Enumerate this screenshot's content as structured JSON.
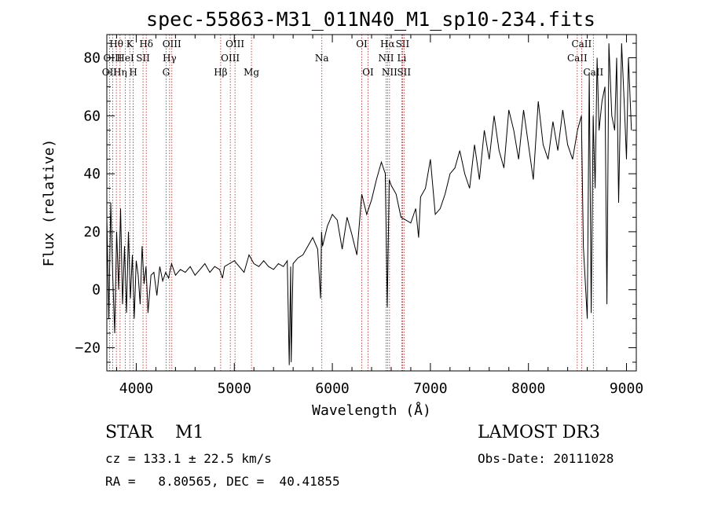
{
  "chart_data": {
    "type": "line",
    "title": "spec-55863-M31_011N40_M1_sp10-234.fits",
    "xlabel": "Wavelength (Å)",
    "ylabel": "Flux (relative)",
    "xlim": [
      3700,
      9100
    ],
    "ylim": [
      -28,
      88
    ],
    "xticks": [
      4000,
      5000,
      6000,
      7000,
      8000,
      9000
    ],
    "yticks": [
      -20,
      0,
      20,
      40,
      60,
      80
    ],
    "series": [
      {
        "name": "flux",
        "x": [
          3700,
          3720,
          3740,
          3760,
          3780,
          3800,
          3820,
          3840,
          3860,
          3880,
          3900,
          3920,
          3940,
          3960,
          3980,
          4000,
          4020,
          4040,
          4060,
          4080,
          4100,
          4120,
          4150,
          4180,
          4210,
          4240,
          4270,
          4300,
          4330,
          4360,
          4400,
          4450,
          4500,
          4550,
          4600,
          4650,
          4700,
          4750,
          4800,
          4850,
          4880,
          4900,
          4950,
          5000,
          5050,
          5100,
          5150,
          5200,
          5250,
          5300,
          5350,
          5400,
          5450,
          5500,
          5540,
          5560,
          5575,
          5580,
          5600,
          5650,
          5700,
          5750,
          5800,
          5850,
          5880,
          5890,
          5900,
          5950,
          6000,
          6050,
          6100,
          6150,
          6200,
          6250,
          6300,
          6350,
          6400,
          6450,
          6500,
          6540,
          6560,
          6580,
          6600,
          6650,
          6700,
          6750,
          6800,
          6850,
          6880,
          6900,
          6950,
          7000,
          7050,
          7100,
          7150,
          7200,
          7250,
          7300,
          7350,
          7400,
          7450,
          7500,
          7550,
          7600,
          7650,
          7700,
          7750,
          7800,
          7850,
          7900,
          7950,
          8000,
          8050,
          8100,
          8150,
          8200,
          8250,
          8300,
          8350,
          8400,
          8450,
          8500,
          8540,
          8560,
          8600,
          8620,
          8640,
          8660,
          8680,
          8700,
          8720,
          8750,
          8780,
          8800,
          8820,
          8850,
          8880,
          8900,
          8920,
          8950,
          8980,
          9000,
          9020,
          9050
        ],
        "y": [
          25,
          -10,
          30,
          5,
          -15,
          20,
          0,
          28,
          -5,
          15,
          -8,
          20,
          -3,
          12,
          -10,
          10,
          5,
          -5,
          15,
          2,
          8,
          -8,
          5,
          6,
          -2,
          8,
          3,
          6,
          4,
          9,
          5,
          7,
          6,
          8,
          5,
          7,
          9,
          6,
          8,
          7,
          4,
          8,
          9,
          10,
          8,
          6,
          12,
          9,
          8,
          10,
          8,
          7,
          9,
          8,
          10,
          -26,
          8,
          -25,
          9,
          11,
          12,
          15,
          18,
          14,
          -3,
          20,
          15,
          22,
          26,
          24,
          14,
          25,
          19,
          12,
          33,
          26,
          31,
          38,
          44,
          40,
          -6,
          38,
          36,
          33,
          25,
          24,
          23,
          28,
          18,
          32,
          35,
          45,
          26,
          28,
          33,
          40,
          42,
          48,
          40,
          35,
          50,
          38,
          55,
          45,
          60,
          48,
          42,
          62,
          55,
          45,
          62,
          50,
          38,
          65,
          50,
          45,
          58,
          48,
          62,
          50,
          45,
          55,
          60,
          15,
          -10,
          75,
          -8,
          60,
          35,
          80,
          55,
          65,
          70,
          -5,
          85,
          60,
          55,
          80,
          30,
          85,
          62,
          45,
          80,
          55
        ]
      }
    ],
    "lines": [
      {
        "label": "Hθ",
        "x": 3797,
        "row": 0
      },
      {
        "label": "OII",
        "x": 3727,
        "row": 2
      },
      {
        "label": "OIII",
        "x": 3760,
        "row": 1
      },
      {
        "label": "Hη",
        "x": 3835,
        "row": 2
      },
      {
        "label": "HeI",
        "x": 3889,
        "row": 1
      },
      {
        "label": "K",
        "x": 3934,
        "row": 0
      },
      {
        "label": "SII",
        "x": 4069,
        "row": 1
      },
      {
        "label": "H",
        "x": 3969,
        "row": 2
      },
      {
        "label": "Hδ",
        "x": 4102,
        "row": 0
      },
      {
        "label": "G",
        "x": 4304,
        "row": 2
      },
      {
        "label": "Hγ",
        "x": 4340,
        "row": 1
      },
      {
        "label": "OIII",
        "x": 4363,
        "row": 0
      },
      {
        "label": "Hβ",
        "x": 4861,
        "row": 2
      },
      {
        "label": "OIII",
        "x": 4959,
        "row": 1
      },
      {
        "label": "OIII",
        "x": 5007,
        "row": 0
      },
      {
        "label": "Mg",
        "x": 5175,
        "row": 2
      },
      {
        "label": "Na",
        "x": 5893,
        "row": 1
      },
      {
        "label": "OI",
        "x": 6300,
        "row": 0
      },
      {
        "label": "OI",
        "x": 6364,
        "row": 2
      },
      {
        "label": "NII",
        "x": 6548,
        "row": 1
      },
      {
        "label": "Hα",
        "x": 6563,
        "row": 0
      },
      {
        "label": "NII",
        "x": 6583,
        "row": 2
      },
      {
        "label": "Li",
        "x": 6708,
        "row": 1
      },
      {
        "label": "SII",
        "x": 6716,
        "row": 0
      },
      {
        "label": "SII",
        "x": 6731,
        "row": 2
      },
      {
        "label": "CaII",
        "x": 8498,
        "row": 1
      },
      {
        "label": "CaII",
        "x": 8542,
        "row": 0
      },
      {
        "label": "CaII",
        "x": 8662,
        "row": 2
      }
    ]
  },
  "info": {
    "object_class": "STAR    M1",
    "survey": "LAMOST DR3",
    "redshift": "cz = 133.1 ± 22.5 km/s",
    "obs_date": "Obs-Date: 20111028",
    "coords": "RA =   8.80565, DEC =  40.41855"
  }
}
